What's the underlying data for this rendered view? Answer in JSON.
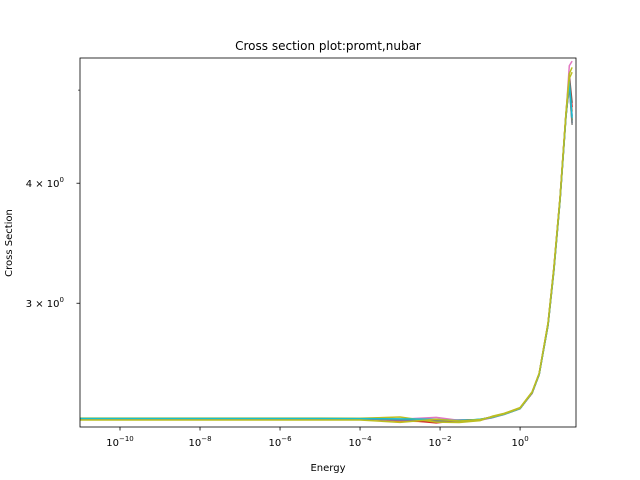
{
  "chart_data": {
    "type": "line",
    "title": "Cross section plot:promt,nubar",
    "xlabel": "Energy",
    "ylabel": "Cross Section",
    "xscale": "log",
    "yscale": "log",
    "xlim": [
      1e-11,
      25
    ],
    "ylim": [
      2.23,
      5.4
    ],
    "grid": false,
    "legend": "none",
    "x_major_ticks": [
      {
        "value": 1e-10,
        "base": "10",
        "exp": "−10"
      },
      {
        "value": 1e-08,
        "base": "10",
        "exp": "−8"
      },
      {
        "value": 1e-06,
        "base": "10",
        "exp": "−6"
      },
      {
        "value": 0.0001,
        "base": "10",
        "exp": "−4"
      },
      {
        "value": 0.01,
        "base": "10",
        "exp": "−2"
      },
      {
        "value": 1,
        "base": "10",
        "exp": "0"
      }
    ],
    "y_labeled_ticks": [
      {
        "value": 3,
        "base": "3 × 10",
        "exp": "0"
      },
      {
        "value": 4,
        "base": "4 × 10",
        "exp": "0"
      }
    ],
    "y_unlabeled_ticks": [
      5
    ],
    "x": [
      1e-11,
      1e-10,
      1e-08,
      1e-06,
      1e-05,
      0.0001,
      0.001,
      0.008,
      0.03,
      0.1,
      0.2,
      0.4,
      1,
      2,
      3,
      5,
      7,
      10,
      14,
      17,
      20
    ],
    "series": [
      {
        "color": "#1f77b4",
        "values": [
          2.275,
          2.275,
          2.275,
          2.275,
          2.275,
          2.274,
          2.27,
          2.266,
          2.268,
          2.27,
          2.282,
          2.3,
          2.33,
          2.42,
          2.53,
          2.85,
          3.25,
          3.85,
          4.7,
          5.05,
          4.62
        ]
      },
      {
        "color": "#ff7f0e",
        "values": [
          2.277,
          2.277,
          2.277,
          2.277,
          2.277,
          2.276,
          2.262,
          2.258,
          2.262,
          2.268,
          2.285,
          2.303,
          2.335,
          2.425,
          2.535,
          2.86,
          3.27,
          3.87,
          4.72,
          5.1,
          4.75
        ]
      },
      {
        "color": "#2ca02c",
        "values": [
          2.276,
          2.276,
          2.276,
          2.276,
          2.276,
          2.275,
          2.268,
          2.262,
          2.26,
          2.272,
          2.283,
          2.298,
          2.33,
          2.42,
          2.528,
          2.845,
          3.24,
          3.84,
          4.68,
          5.12,
          4.65
        ]
      },
      {
        "color": "#d62728",
        "values": [
          2.275,
          2.275,
          2.275,
          2.275,
          2.275,
          2.274,
          2.27,
          2.252,
          2.265,
          2.27,
          2.28,
          2.301,
          2.332,
          2.418,
          2.532,
          2.852,
          3.255,
          3.86,
          4.71,
          5.15,
          4.8
        ]
      },
      {
        "color": "#9467bd",
        "values": [
          2.276,
          2.276,
          2.276,
          2.276,
          2.276,
          2.275,
          2.266,
          2.27,
          2.258,
          2.27,
          2.284,
          2.3,
          2.331,
          2.422,
          2.531,
          2.855,
          3.26,
          3.86,
          4.7,
          5.08,
          4.7
        ]
      },
      {
        "color": "#8c564b",
        "values": [
          2.277,
          2.277,
          2.277,
          2.277,
          2.277,
          2.276,
          2.27,
          2.268,
          2.262,
          2.269,
          2.286,
          2.302,
          2.333,
          2.424,
          2.534,
          2.858,
          3.262,
          3.865,
          4.72,
          5.18,
          4.85
        ]
      },
      {
        "color": "#e377c2",
        "values": [
          2.276,
          2.276,
          2.276,
          2.276,
          2.276,
          2.275,
          2.272,
          2.282,
          2.266,
          2.266,
          2.28,
          2.298,
          2.33,
          2.42,
          2.53,
          2.85,
          3.25,
          3.85,
          4.7,
          5.3,
          5.36
        ]
      },
      {
        "color": "#7f7f7f",
        "values": [
          2.275,
          2.275,
          2.275,
          2.275,
          2.275,
          2.274,
          2.27,
          2.264,
          2.266,
          2.268,
          2.282,
          2.3,
          2.332,
          2.419,
          2.529,
          2.848,
          3.248,
          3.848,
          4.69,
          5.06,
          4.6
        ]
      },
      {
        "color": "#bcbd22",
        "values": [
          2.278,
          2.278,
          2.278,
          2.278,
          2.278,
          2.277,
          2.284,
          2.256,
          2.254,
          2.264,
          2.288,
          2.304,
          2.336,
          2.426,
          2.536,
          2.862,
          3.268,
          3.87,
          4.73,
          5.2,
          5.28
        ]
      },
      {
        "color": "#17becf",
        "values": [
          2.276,
          2.276,
          2.276,
          2.276,
          2.276,
          2.275,
          2.274,
          2.272,
          2.264,
          2.272,
          2.281,
          2.299,
          2.331,
          2.421,
          2.53,
          2.85,
          3.252,
          3.852,
          4.7,
          5.1,
          4.68
        ]
      },
      {
        "color": "#bcbd22",
        "values": [
          2.268,
          2.268,
          2.268,
          2.268,
          2.268,
          2.268,
          2.255,
          2.272,
          2.262,
          2.27,
          2.284,
          2.301,
          2.333,
          2.423,
          2.533,
          2.855,
          3.258,
          3.858,
          4.71,
          5.14,
          5.22
        ]
      }
    ]
  }
}
